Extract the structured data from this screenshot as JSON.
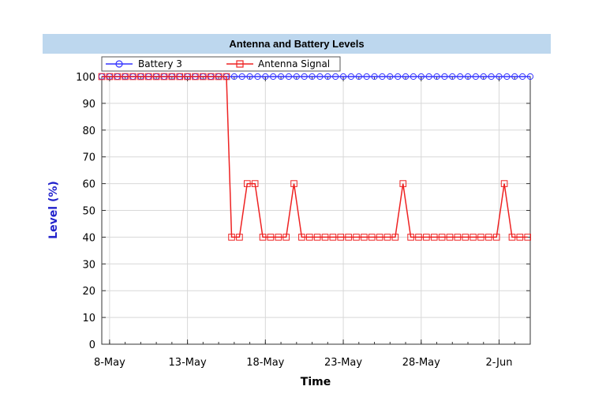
{
  "chart_data": {
    "type": "line",
    "title": "Antenna and Battery Levels",
    "xlabel": "Time",
    "ylabel": "Level (%)",
    "ylim": [
      0,
      100
    ],
    "y_ticks": [
      "0",
      "10",
      "20",
      "30",
      "40",
      "50",
      "60",
      "70",
      "80",
      "90",
      "100"
    ],
    "x_ticks": [
      {
        "date": "2020-05-08",
        "label": "8-May"
      },
      {
        "date": "2020-05-13",
        "label": "13-May"
      },
      {
        "date": "2020-05-18",
        "label": "18-May"
      },
      {
        "date": "2020-05-23",
        "label": "23-May"
      },
      {
        "date": "2020-05-28",
        "label": "28-May"
      },
      {
        "date": "2020-06-02",
        "label": "2-Jun"
      }
    ],
    "xlim": [
      "2020-05-07 12:00",
      "2020-06-04"
    ],
    "grid": true,
    "legend": "top",
    "series": [
      {
        "name": "Battery 3",
        "color": "#3333ff",
        "marker": "circle",
        "x_start": "2020-05-07 12:00",
        "x_step_days": 0.5,
        "values": [
          100,
          100,
          100,
          100,
          100,
          100,
          100,
          100,
          100,
          100,
          100,
          100,
          100,
          100,
          100,
          100,
          100,
          100,
          100,
          100,
          100,
          100,
          100,
          100,
          100,
          100,
          100,
          100,
          100,
          100,
          100,
          100,
          100,
          100,
          100,
          100,
          100,
          100,
          100,
          100,
          100,
          100,
          100,
          100,
          100,
          100,
          100,
          100,
          100,
          100,
          100,
          100,
          100,
          100,
          100,
          100,
          100,
          100,
          100,
          100,
          100,
          100,
          100,
          100,
          100,
          100,
          100,
          100,
          100,
          100,
          100,
          100,
          100,
          100,
          100,
          100,
          100,
          100,
          100,
          100,
          100,
          100,
          100,
          100,
          100,
          100,
          100,
          100,
          100,
          100,
          100,
          100,
          100,
          100,
          100,
          100,
          100,
          100,
          100,
          100,
          100,
          100,
          100,
          100,
          100,
          100,
          100,
          100,
          100,
          100
        ]
      },
      {
        "name": "Antenna Signal",
        "color": "#ee2222",
        "marker": "square",
        "points": [
          [
            "2020-05-07 12:00",
            100
          ],
          [
            "2020-05-08 00:00",
            100
          ],
          [
            "2020-05-08 12:00",
            100
          ],
          [
            "2020-05-09 00:00",
            100
          ],
          [
            "2020-05-09 12:00",
            100
          ],
          [
            "2020-05-10 00:00",
            100
          ],
          [
            "2020-05-10 12:00",
            100
          ],
          [
            "2020-05-11 00:00",
            100
          ],
          [
            "2020-05-11 12:00",
            100
          ],
          [
            "2020-05-12 00:00",
            100
          ],
          [
            "2020-05-12 12:00",
            100
          ],
          [
            "2020-05-13 00:00",
            100
          ],
          [
            "2020-05-13 12:00",
            100
          ],
          [
            "2020-05-14 00:00",
            100
          ],
          [
            "2020-05-14 12:00",
            100
          ],
          [
            "2020-05-15 00:00",
            100
          ],
          [
            "2020-05-15 12:00",
            100
          ],
          [
            "2020-05-15 20:00",
            40
          ],
          [
            "2020-05-16 08:00",
            40
          ],
          [
            "2020-05-16 20:00",
            60
          ],
          [
            "2020-05-17 08:00",
            60
          ],
          [
            "2020-05-17 20:00",
            40
          ],
          [
            "2020-05-18 08:00",
            40
          ],
          [
            "2020-05-18 20:00",
            40
          ],
          [
            "2020-05-19 08:00",
            40
          ],
          [
            "2020-05-19 20:00",
            60
          ],
          [
            "2020-05-20 08:00",
            40
          ],
          [
            "2020-05-20 20:00",
            40
          ],
          [
            "2020-05-21 08:00",
            40
          ],
          [
            "2020-05-21 20:00",
            40
          ],
          [
            "2020-05-22 08:00",
            40
          ],
          [
            "2020-05-22 20:00",
            40
          ],
          [
            "2020-05-23 08:00",
            40
          ],
          [
            "2020-05-23 20:00",
            40
          ],
          [
            "2020-05-24 08:00",
            40
          ],
          [
            "2020-05-24 20:00",
            40
          ],
          [
            "2020-05-25 08:00",
            40
          ],
          [
            "2020-05-25 20:00",
            40
          ],
          [
            "2020-05-26 08:00",
            40
          ],
          [
            "2020-05-26 20:00",
            60
          ],
          [
            "2020-05-27 08:00",
            40
          ],
          [
            "2020-05-27 20:00",
            40
          ],
          [
            "2020-05-28 08:00",
            40
          ],
          [
            "2020-05-28 20:00",
            40
          ],
          [
            "2020-05-29 08:00",
            40
          ],
          [
            "2020-05-29 20:00",
            40
          ],
          [
            "2020-05-30 08:00",
            40
          ],
          [
            "2020-05-30 20:00",
            40
          ],
          [
            "2020-05-31 08:00",
            40
          ],
          [
            "2020-05-31 20:00",
            40
          ],
          [
            "2020-06-01 08:00",
            40
          ],
          [
            "2020-06-01 20:00",
            40
          ],
          [
            "2020-06-02 08:00",
            60
          ],
          [
            "2020-06-02 20:00",
            40
          ],
          [
            "2020-06-03 08:00",
            40
          ],
          [
            "2020-06-03 20:00",
            40
          ]
        ]
      }
    ]
  }
}
